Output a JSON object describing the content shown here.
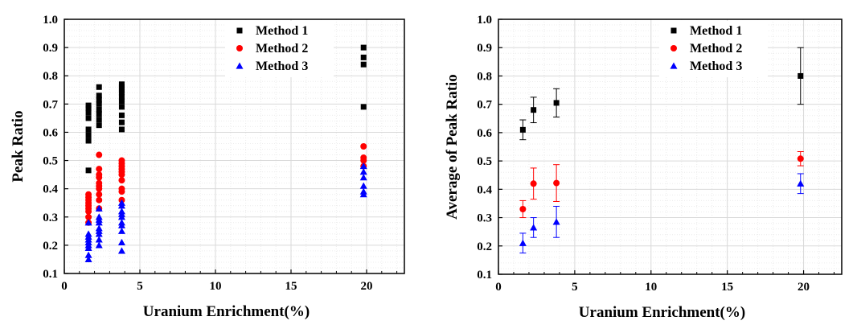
{
  "colors": {
    "method1": "#000000",
    "method2": "#ff0000",
    "method3": "#0000ff",
    "grid": "#d9d9d9",
    "minor_grid": "#ececec"
  },
  "chart_data": [
    {
      "type": "scatter",
      "title": "",
      "xlabel": "Uranium Enrichment(%)",
      "ylabel": "Peak Ratio",
      "xlim": [
        0,
        22.5
      ],
      "ylim": [
        0.1,
        1.0
      ],
      "xticks": [
        0,
        5,
        10,
        15,
        20
      ],
      "yticks": [
        0.1,
        0.2,
        0.3,
        0.4,
        0.5,
        0.6,
        0.7,
        0.8,
        0.9,
        1.0
      ],
      "grid": true,
      "legend_position": "top-center",
      "series": [
        {
          "name": "Method 1",
          "marker": "square",
          "x": [
            1.6,
            1.6,
            1.6,
            1.6,
            1.6,
            1.6,
            1.6,
            1.6,
            2.3,
            2.3,
            2.3,
            2.3,
            2.3,
            2.3,
            2.3,
            2.3,
            3.8,
            3.8,
            3.8,
            3.8,
            3.8,
            3.8,
            3.8,
            3.8,
            3.8,
            3.8,
            19.8,
            19.8,
            19.8,
            19.8
          ],
          "y": [
            0.465,
            0.57,
            0.59,
            0.61,
            0.65,
            0.67,
            0.685,
            0.695,
            0.625,
            0.645,
            0.665,
            0.68,
            0.7,
            0.715,
            0.73,
            0.76,
            0.61,
            0.635,
            0.66,
            0.69,
            0.71,
            0.725,
            0.74,
            0.75,
            0.76,
            0.77,
            0.69,
            0.84,
            0.865,
            0.9
          ]
        },
        {
          "name": "Method 2",
          "marker": "circle",
          "x": [
            1.6,
            1.6,
            1.6,
            1.6,
            1.6,
            1.6,
            1.6,
            1.6,
            1.6,
            2.3,
            2.3,
            2.3,
            2.3,
            2.3,
            2.3,
            2.3,
            2.3,
            2.3,
            2.3,
            3.8,
            3.8,
            3.8,
            3.8,
            3.8,
            3.8,
            3.8,
            3.8,
            3.8,
            3.8,
            19.8,
            19.8,
            19.8,
            19.8
          ],
          "y": [
            0.28,
            0.3,
            0.32,
            0.33,
            0.34,
            0.35,
            0.36,
            0.37,
            0.38,
            0.33,
            0.36,
            0.38,
            0.4,
            0.41,
            0.42,
            0.44,
            0.45,
            0.47,
            0.52,
            0.36,
            0.39,
            0.4,
            0.43,
            0.45,
            0.46,
            0.47,
            0.48,
            0.49,
            0.5,
            0.48,
            0.5,
            0.51,
            0.55
          ]
        },
        {
          "name": "Method 3",
          "marker": "triangle",
          "x": [
            1.6,
            1.6,
            1.6,
            1.6,
            1.6,
            1.6,
            1.6,
            1.6,
            1.6,
            2.3,
            2.3,
            2.3,
            2.3,
            2.3,
            2.3,
            2.3,
            2.3,
            2.3,
            3.8,
            3.8,
            3.8,
            3.8,
            3.8,
            3.8,
            3.8,
            3.8,
            3.8,
            3.8,
            19.8,
            19.8,
            19.8,
            19.8,
            19.8,
            19.8
          ],
          "y": [
            0.15,
            0.165,
            0.19,
            0.2,
            0.21,
            0.22,
            0.23,
            0.24,
            0.28,
            0.2,
            0.22,
            0.24,
            0.25,
            0.26,
            0.28,
            0.29,
            0.3,
            0.33,
            0.18,
            0.21,
            0.25,
            0.27,
            0.28,
            0.3,
            0.31,
            0.32,
            0.34,
            0.35,
            0.38,
            0.39,
            0.41,
            0.44,
            0.46,
            0.48
          ]
        }
      ]
    },
    {
      "type": "scatter",
      "title": "",
      "xlabel": "Uranium Enrichment(%)",
      "ylabel": "Average of Peak Ratio",
      "xlim": [
        0,
        22.5
      ],
      "ylim": [
        0.1,
        1.0
      ],
      "xticks": [
        0,
        5,
        10,
        15,
        20
      ],
      "yticks": [
        0.1,
        0.2,
        0.3,
        0.4,
        0.5,
        0.6,
        0.7,
        0.8,
        0.9,
        1.0
      ],
      "grid": true,
      "legend_position": "top-center",
      "error_bars": true,
      "series": [
        {
          "name": "Method 1",
          "marker": "square",
          "x": [
            1.6,
            2.3,
            3.8,
            19.8
          ],
          "y": [
            0.61,
            0.68,
            0.705,
            0.8
          ],
          "yerr": [
            0.035,
            0.045,
            0.05,
            0.1
          ]
        },
        {
          "name": "Method 2",
          "marker": "circle",
          "x": [
            1.6,
            2.3,
            3.8,
            19.8
          ],
          "y": [
            0.33,
            0.42,
            0.422,
            0.508
          ],
          "yerr": [
            0.03,
            0.055,
            0.065,
            0.025
          ]
        },
        {
          "name": "Method 3",
          "marker": "triangle",
          "x": [
            1.6,
            2.3,
            3.8,
            19.8
          ],
          "y": [
            0.21,
            0.265,
            0.285,
            0.42
          ],
          "yerr": [
            0.035,
            0.035,
            0.055,
            0.035
          ]
        }
      ]
    }
  ]
}
